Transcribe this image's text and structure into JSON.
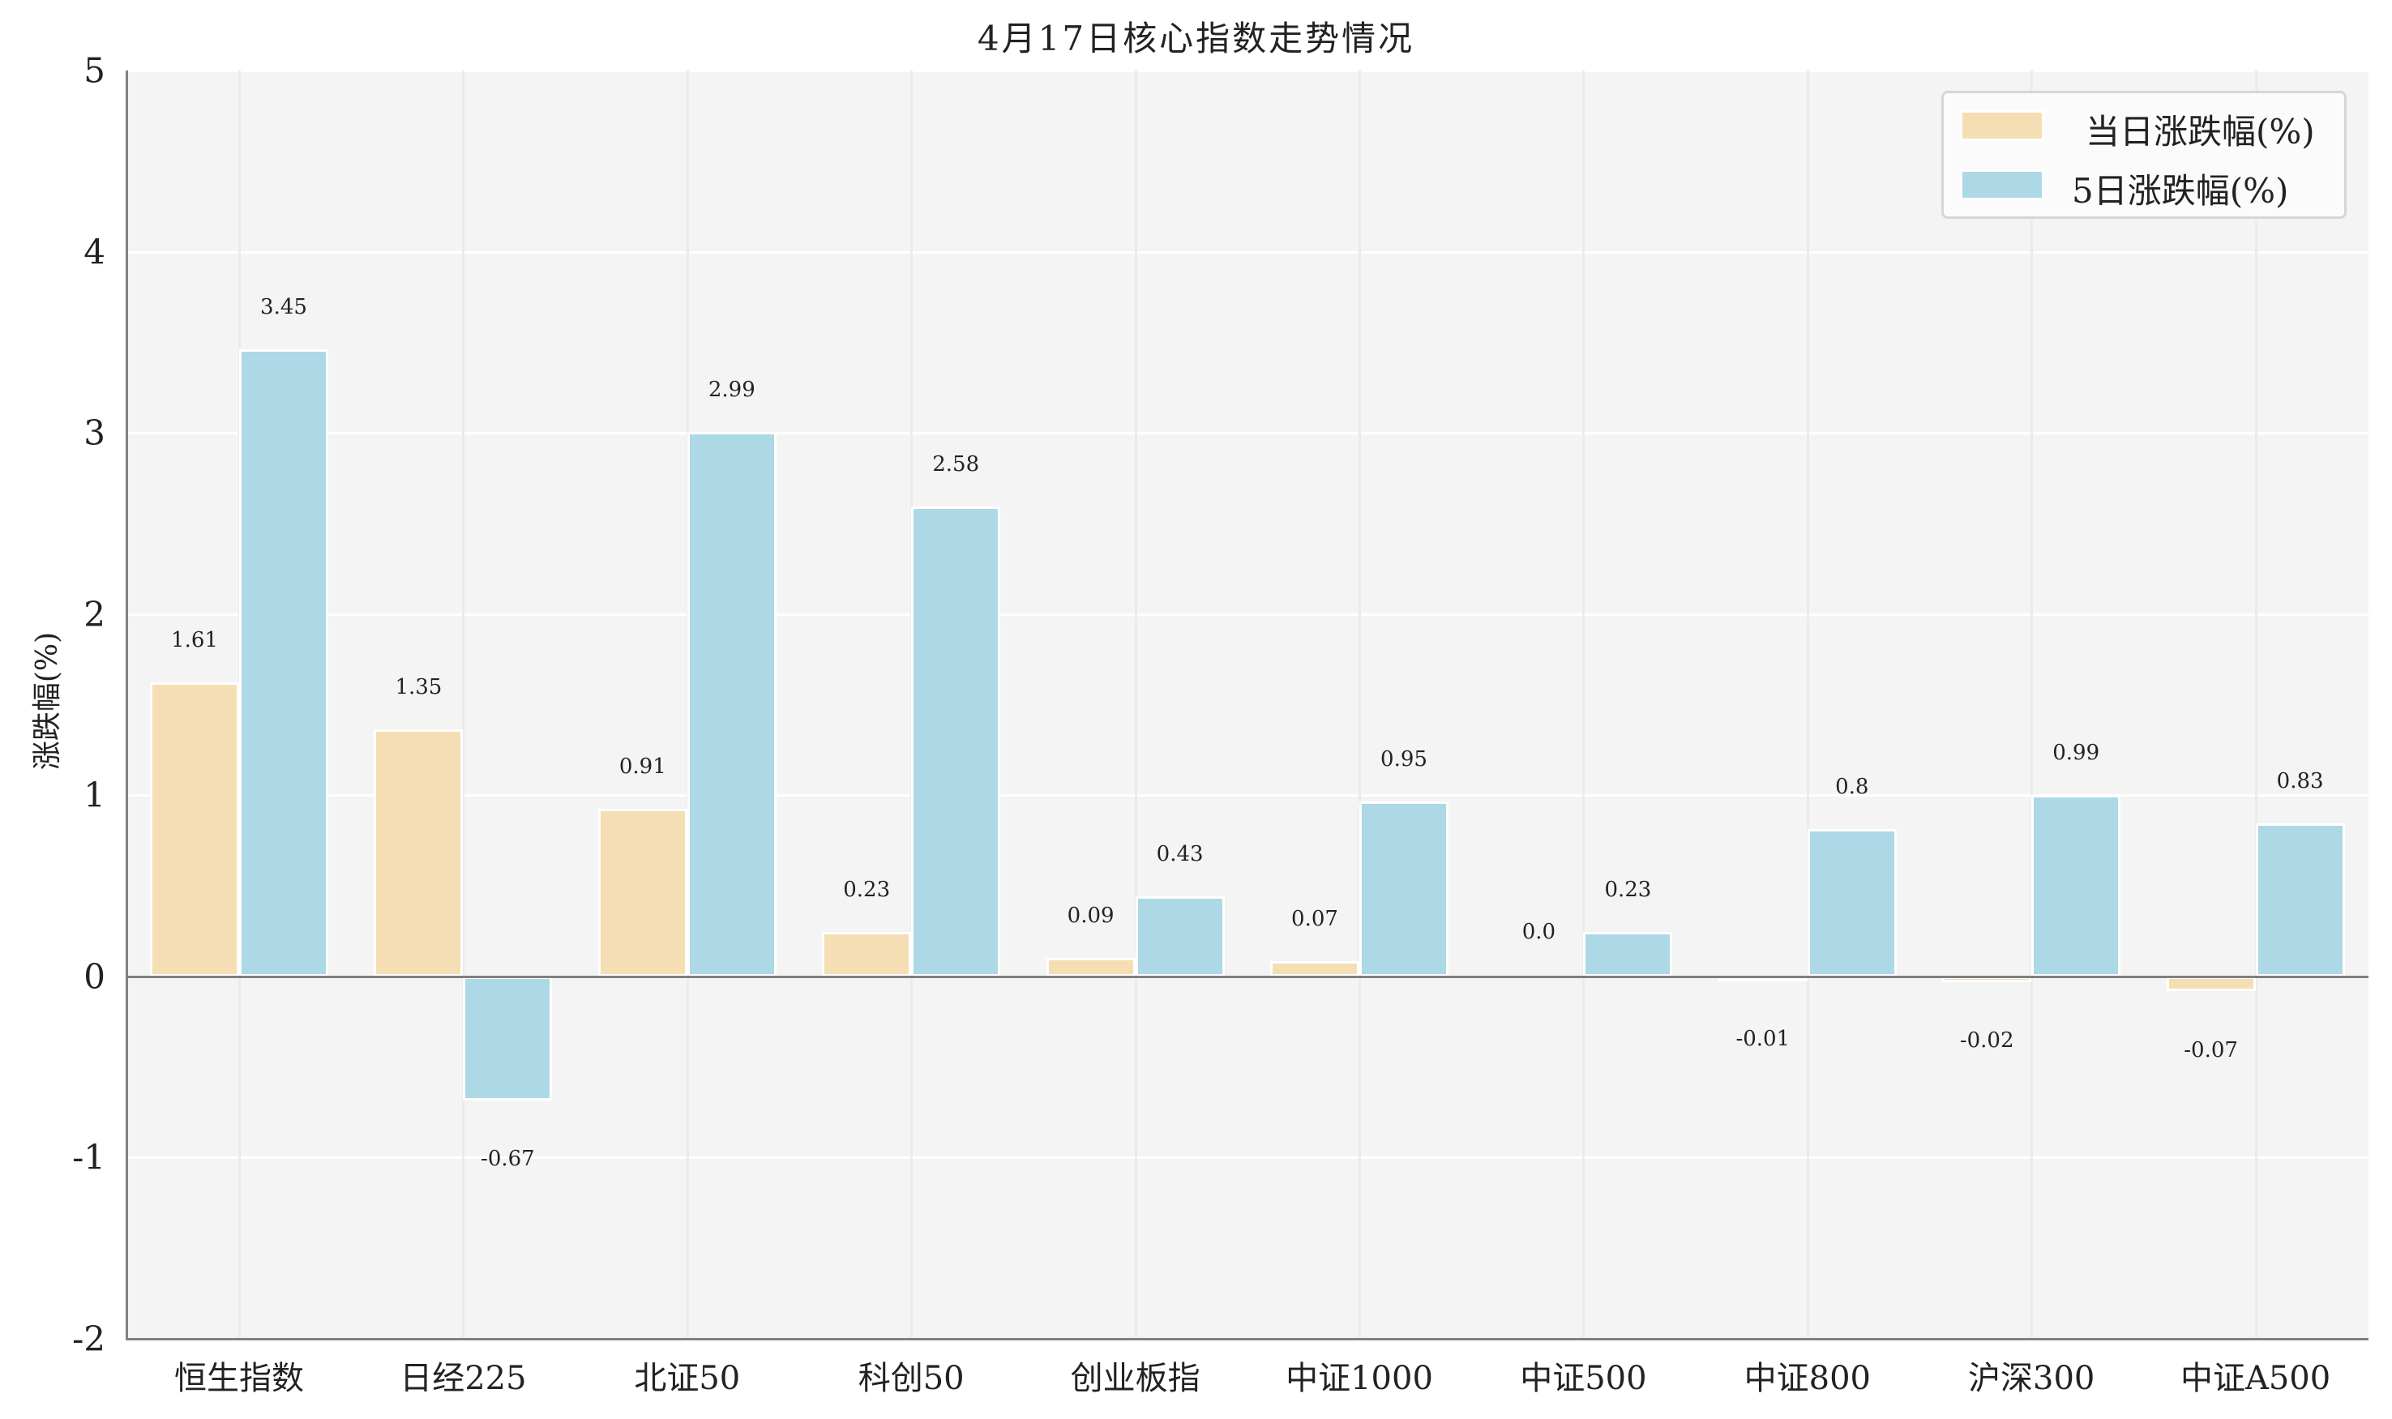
{
  "chart_data": {
    "type": "bar",
    "title": "4月17日核心指数走势情况",
    "xlabel": "",
    "ylabel": "涨跌幅(%)",
    "ylim": [
      -2,
      5
    ],
    "yticks": [
      "5",
      "4",
      "3",
      "2",
      "1",
      "0",
      "-1",
      "-2"
    ],
    "grid": true,
    "legend_position": "upper right",
    "categories": [
      "恒生指数",
      "日经225",
      "北证50",
      "科创50",
      "创业板指",
      "中证1000",
      "中证500",
      "中证800",
      "沪深300",
      "中证A500"
    ],
    "series": [
      {
        "name": "当日涨跌幅(%)",
        "color": "#F5DEB3",
        "values": [
          1.61,
          1.35,
          0.91,
          0.23,
          0.09,
          0.07,
          0.0,
          -0.01,
          -0.02,
          -0.07
        ],
        "labels": [
          "1.61",
          "1.35",
          "0.91",
          "0.23",
          "0.09",
          "0.07",
          "0.0",
          "-0.01",
          "-0.02",
          "-0.07"
        ]
      },
      {
        "name": "5日涨跌幅(%)",
        "color": "#ADD8E6",
        "values": [
          3.45,
          -0.67,
          2.99,
          2.58,
          0.43,
          0.95,
          0.23,
          0.8,
          0.99,
          0.83
        ],
        "labels": [
          "3.45",
          "-0.67",
          "2.99",
          "2.58",
          "0.43",
          "0.95",
          "0.23",
          "0.8",
          "0.99",
          "0.83"
        ]
      }
    ]
  },
  "legend": {
    "items": [
      {
        "label": "当日涨跌幅(%)",
        "color": "#F5DEB3"
      },
      {
        "label": "5日涨跌幅(%)",
        "color": "#ADD8E6"
      }
    ]
  },
  "colors": {
    "plot_background": "#F4F4F4",
    "spine": "#808080",
    "grid": "#FFFFFF"
  }
}
